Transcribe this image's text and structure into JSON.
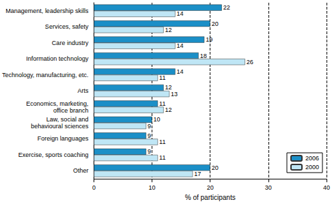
{
  "chart_data": {
    "type": "bar",
    "orientation": "horizontal",
    "x_label": "% of participants",
    "categories": [
      "Management, leadership skills",
      "Services, safety",
      "Care industry",
      "Information technology",
      "Technology, manufacturing, etc.",
      "Arts",
      "Economics, marketing,\noffice branch",
      "Law, social and\nbehavioural sciences",
      "Foreign languages",
      "Exercise, sports coaching",
      "Other"
    ],
    "series": [
      {
        "name": "2006",
        "color": "#1b8fc7",
        "values": [
          22,
          20,
          19,
          18,
          14,
          12,
          11,
          10,
          9,
          9,
          20
        ]
      },
      {
        "name": "2000",
        "color": "#bfe6f5",
        "values": [
          14,
          12,
          14,
          26,
          11,
          13,
          12,
          9,
          11,
          11,
          17
        ]
      }
    ],
    "xlim": [
      0,
      40
    ],
    "xticks": [
      0,
      10,
      20,
      30,
      40
    ],
    "grid": true,
    "legend": "lower right",
    "data_labels": true
  }
}
